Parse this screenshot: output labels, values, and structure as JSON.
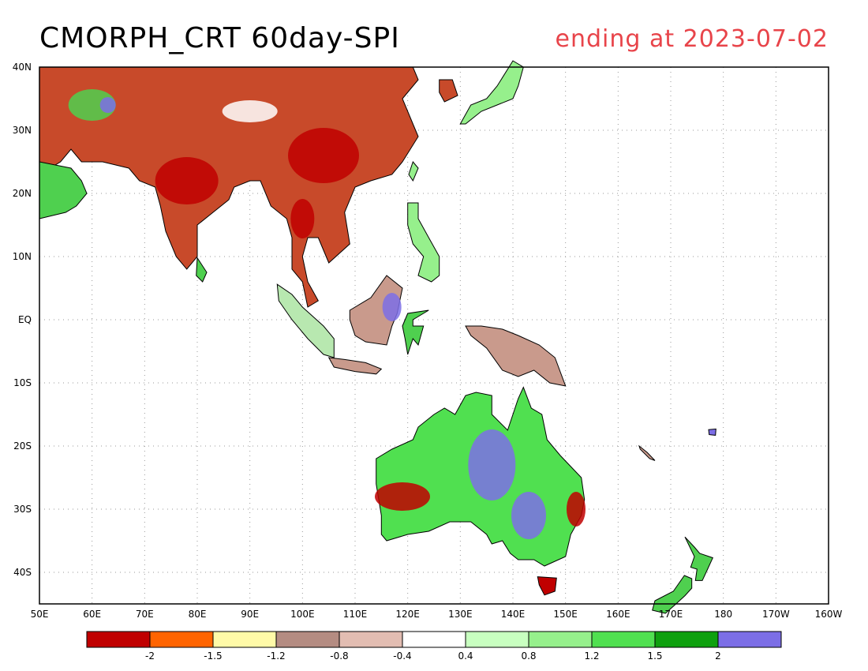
{
  "title": "CMORPH_CRT 60day-SPI",
  "subtitle": "ending at 2023-07-02",
  "lat_labels": [
    "40N",
    "30N",
    "20N",
    "10N",
    "EQ",
    "10S",
    "20S",
    "30S",
    "40S"
  ],
  "lon_labels": [
    "50E",
    "60E",
    "70E",
    "80E",
    "90E",
    "100E",
    "110E",
    "120E",
    "130E",
    "140E",
    "150E",
    "160E",
    "170E",
    "180",
    "170W",
    "160W"
  ],
  "legend": {
    "colors": [
      "#c00000",
      "#ff6400",
      "#fffaa8",
      "#b48c82",
      "#e2bdb2",
      "#ffffff",
      "#c8ffc0",
      "#96f08c",
      "#50e050",
      "#0ea00e",
      "#7c6ee6"
    ],
    "labels": [
      "-2",
      "-1.5",
      "-1.2",
      "-0.8",
      "-0.4",
      "0.4",
      "0.8",
      "1.2",
      "1.5",
      "2"
    ]
  },
  "colors": {
    "coast": "#000000",
    "grid": "#9a9a9a",
    "subtitle": "#e8444a"
  }
}
